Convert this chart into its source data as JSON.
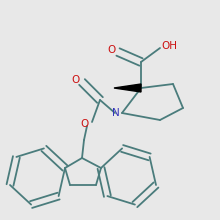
{
  "background_color": "#e8e8e8",
  "bond_color": "#4a7c7c",
  "bond_width": 1.3,
  "N_color": "#3333bb",
  "O_color": "#cc1111",
  "fig_width": 2.2,
  "fig_height": 2.2,
  "dpi": 100,
  "xlim": [
    0,
    220
  ],
  "ylim": [
    0,
    220
  ]
}
